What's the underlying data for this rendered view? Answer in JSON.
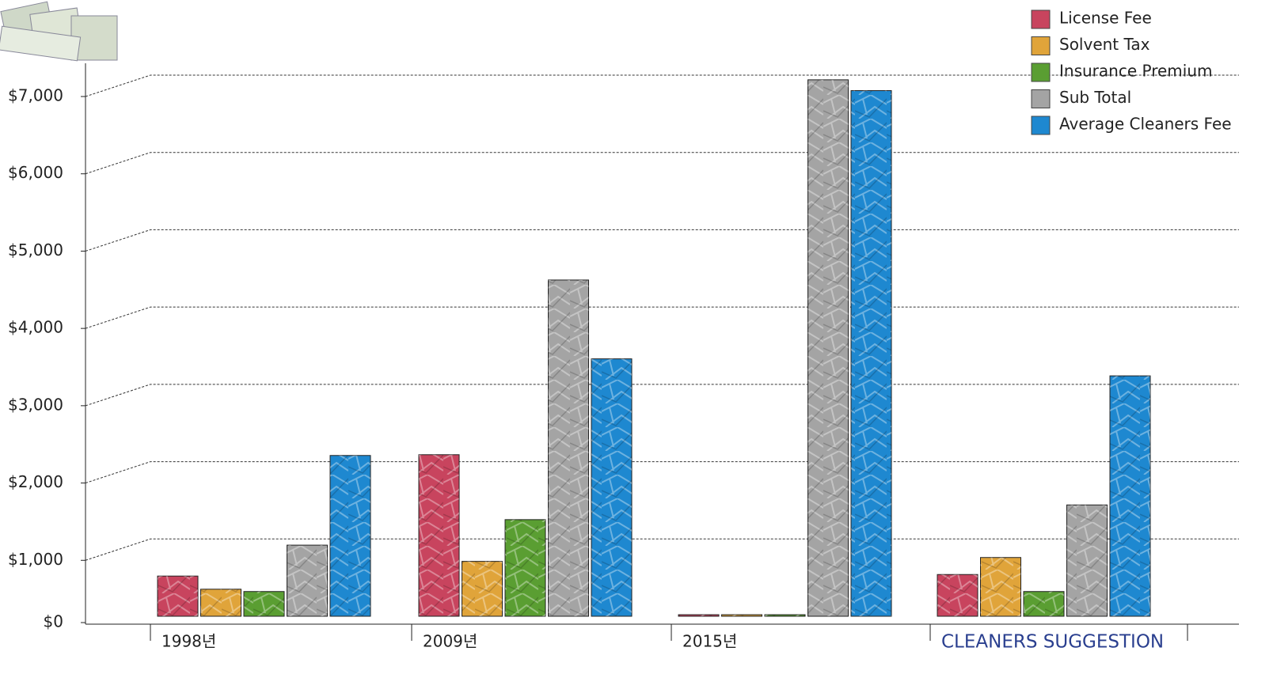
{
  "chart_data": {
    "type": "bar",
    "categories": [
      "1998년",
      "2009년",
      "2015년",
      "CLEANERS SUGGESTION"
    ],
    "series": [
      {
        "name": "License Fee",
        "color": "#c8445e",
        "values": [
          520,
          2090,
          20,
          540
        ]
      },
      {
        "name": "Solvent Tax",
        "color": "#e0a43a",
        "values": [
          350,
          710,
          20,
          760
        ]
      },
      {
        "name": "Insurance Premium",
        "color": "#5a9e32",
        "values": [
          320,
          1250,
          20,
          320
        ]
      },
      {
        "name": "Sub Total",
        "color": "#a4a4a4",
        "values": [
          920,
          4350,
          6940,
          1440
        ]
      },
      {
        "name": "Average Cleaners Fee",
        "color": "#1e88d0",
        "values": [
          2080,
          3330,
          6800,
          3110
        ]
      }
    ],
    "ylim": [
      0,
      7000
    ],
    "yticks": [
      {
        "value": 0,
        "label": "$0"
      },
      {
        "value": 1000,
        "label": "$1,000"
      },
      {
        "value": 2000,
        "label": "$2,000"
      },
      {
        "value": 3000,
        "label": "$3,000"
      },
      {
        "value": 4000,
        "label": "$4,000"
      },
      {
        "value": 5000,
        "label": "$5,000"
      },
      {
        "value": 6000,
        "label": "$6,000"
      },
      {
        "value": 7000,
        "label": "$7,000"
      }
    ],
    "grid": true,
    "legend": "top-right"
  }
}
